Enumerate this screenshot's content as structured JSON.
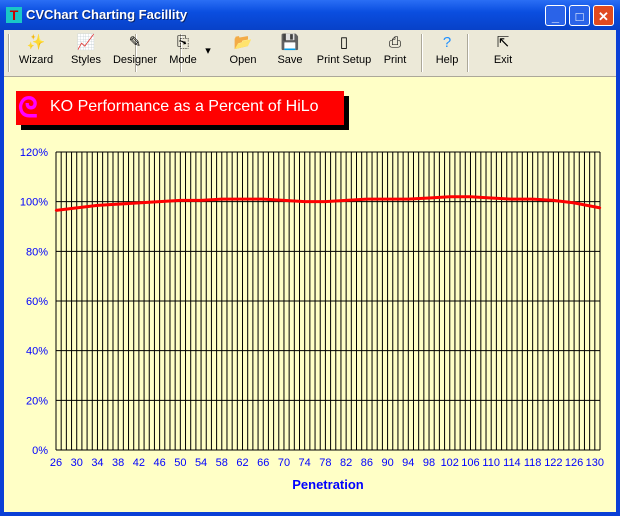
{
  "window": {
    "title": "CVChart Charting Facillity",
    "minimize": "_",
    "maximize": "□",
    "close": "✕"
  },
  "toolbar": [
    {
      "label": "Wizard",
      "icon": "magic-wand-icon",
      "glyph": "✨"
    },
    {
      "label": "Styles",
      "icon": "chart-styles-icon",
      "glyph": "📈"
    },
    {
      "label": "Designer",
      "icon": "pen-icon",
      "glyph": "✎"
    },
    {
      "label": "Mode",
      "icon": "copy-icon",
      "glyph": "⎘"
    },
    {
      "label": "Open",
      "icon": "folder-open-icon",
      "glyph": "📂"
    },
    {
      "label": "Save",
      "icon": "floppy-disk-icon",
      "glyph": "💾"
    },
    {
      "label": "Print Setup",
      "icon": "page-setup-icon",
      "glyph": "▯"
    },
    {
      "label": "Print",
      "icon": "printer-icon",
      "glyph": "⎙"
    },
    {
      "label": "Help",
      "icon": "help-icon",
      "glyph": "?"
    },
    {
      "label": "Exit",
      "icon": "exit-icon",
      "glyph": "⇱"
    }
  ],
  "chart_data": {
    "type": "line",
    "title": "KO Performance as a Percent of HiLo",
    "xlabel": "Penetration",
    "ylabel": "",
    "xlim": [
      26,
      131
    ],
    "ylim": [
      0,
      120
    ],
    "yticks": [
      "0%",
      "20%",
      "40%",
      "60%",
      "80%",
      "100%",
      "120%"
    ],
    "xticks": [
      26,
      30,
      34,
      38,
      42,
      46,
      50,
      54,
      58,
      62,
      66,
      70,
      74,
      78,
      82,
      86,
      90,
      94,
      98,
      102,
      106,
      110,
      114,
      118,
      122,
      126,
      130
    ],
    "grid": true,
    "series": [
      {
        "name": "KO",
        "color": "#ff0000",
        "x": [
          26,
          30,
          34,
          38,
          42,
          46,
          50,
          54,
          58,
          62,
          66,
          70,
          74,
          78,
          82,
          86,
          90,
          94,
          98,
          102,
          106,
          110,
          114,
          118,
          122,
          126,
          131
        ],
        "y": [
          96.5,
          97.5,
          98.5,
          99,
          99.5,
          100,
          100.5,
          100.5,
          101,
          101,
          101,
          100.5,
          100,
          100,
          100.5,
          101,
          101,
          101,
          101.5,
          102,
          102,
          101.5,
          101,
          101,
          100.5,
          99.5,
          97.5
        ]
      }
    ]
  }
}
